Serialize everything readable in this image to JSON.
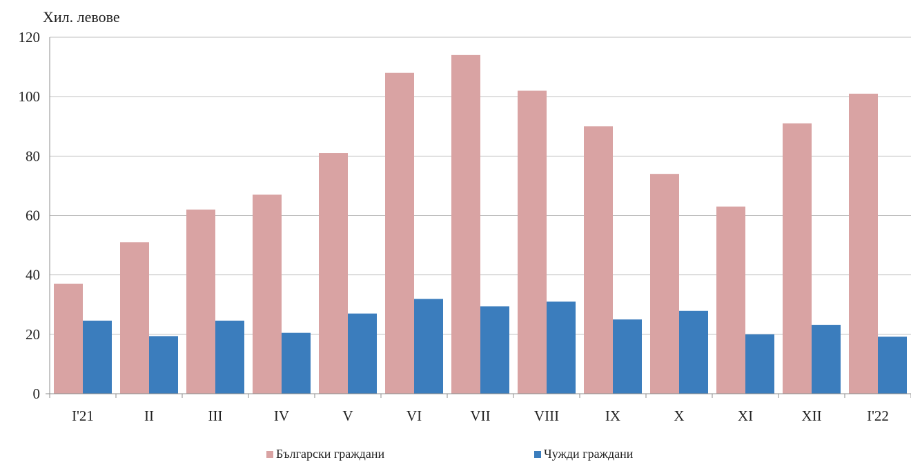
{
  "chart_data": {
    "type": "bar",
    "ylabel": "Хил. левове",
    "ylim": [
      0,
      120
    ],
    "yticks": [
      "0",
      "20",
      "40",
      "60",
      "80",
      "100",
      "120"
    ],
    "grid": true,
    "legend_position": "bottom",
    "categories": [
      "I'21",
      "II",
      "III",
      "IV",
      "V",
      "VI",
      "VII",
      "VIII",
      "IX",
      "X",
      "XI",
      "XII",
      "I'22"
    ],
    "series": [
      {
        "name": "Български граждани",
        "color": "#d9a3a3",
        "values": [
          37,
          51,
          62,
          67,
          81,
          108,
          114,
          102,
          90,
          74,
          63,
          91,
          101
        ]
      },
      {
        "name": "Чужди граждани",
        "color": "#3b7dbd",
        "values": [
          24.6,
          19.4,
          24.6,
          20.5,
          27,
          31.9,
          29.4,
          31,
          25,
          27.9,
          20,
          23.2,
          19.2
        ]
      }
    ]
  }
}
